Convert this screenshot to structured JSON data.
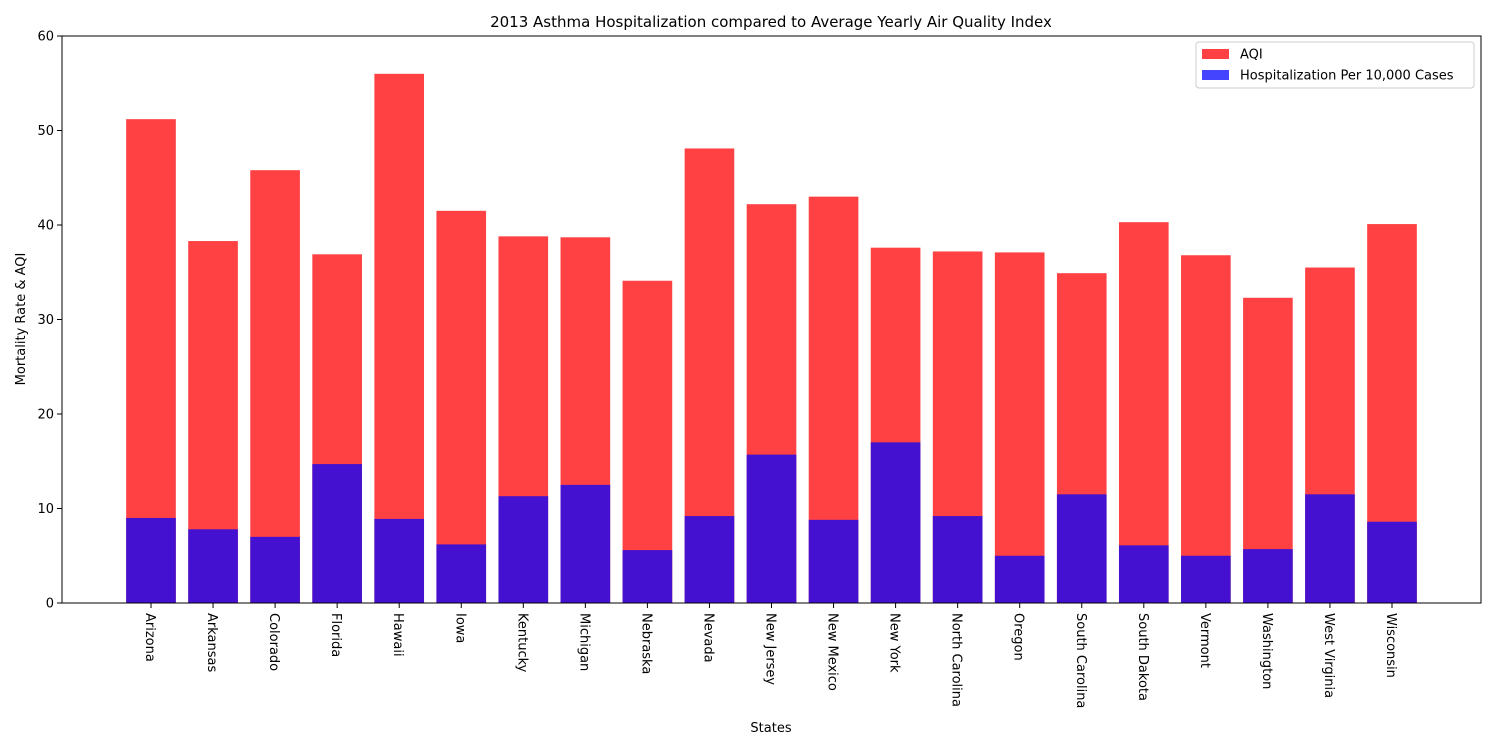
{
  "chart_data": {
    "type": "bar",
    "stacked": "overlay",
    "title": "2013 Asthma Hospitalization compared to Average Yearly Air Quality Index",
    "xlabel": "States",
    "ylabel": "Mortality Rate & AQI",
    "ylim": [
      0,
      60
    ],
    "yticks": [
      0,
      10,
      20,
      30,
      40,
      50,
      60
    ],
    "grid": false,
    "legend_position": "top-right",
    "categories": [
      "Arizona",
      "Arkansas",
      "Colorado",
      "Florida",
      "Hawaii",
      "Iowa",
      "Kentucky",
      "Michigan",
      "Nebraska",
      "Nevada",
      "New Jersey",
      "New Mexico",
      "New York",
      "North Carolina",
      "Oregon",
      "South Carolina",
      "South Dakota",
      "Vermont",
      "Washington",
      "West Virginia",
      "Wisconsin"
    ],
    "series": [
      {
        "name": "AQI",
        "color": "#ff4144",
        "values": [
          51.2,
          38.3,
          45.8,
          36.9,
          56.0,
          41.5,
          38.8,
          38.7,
          34.1,
          48.1,
          42.2,
          43.0,
          37.6,
          37.2,
          37.1,
          34.9,
          40.3,
          36.8,
          32.3,
          35.5,
          40.1
        ]
      },
      {
        "name": "Hospitalization Per 10,000 Cases",
        "color": "#4311cf",
        "values": [
          9.0,
          7.8,
          7.0,
          14.7,
          8.9,
          6.2,
          11.3,
          12.5,
          5.6,
          9.2,
          15.7,
          8.8,
          17.0,
          9.2,
          5.0,
          11.5,
          6.1,
          5.0,
          5.7,
          11.5,
          8.6
        ]
      }
    ],
    "legend_colors": [
      "#ff4144",
      "#4444ff"
    ]
  }
}
